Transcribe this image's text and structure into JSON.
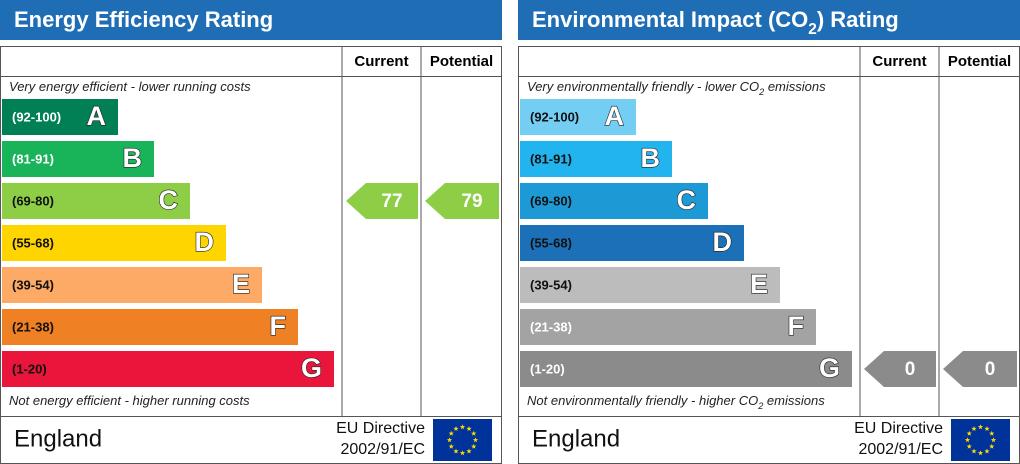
{
  "panels": [
    {
      "title": [
        "Energy Efficiency Rating"
      ],
      "headers": [
        "Current",
        "Potential"
      ],
      "top_note": [
        "Very energy efficient - lower running costs"
      ],
      "bands": [
        {
          "range": "(92-100)",
          "letter": "A",
          "color": "#008054",
          "label_color": "#ffffff"
        },
        {
          "range": "(81-91)",
          "letter": "B",
          "color": "#19b459",
          "label_color": "#ffffff"
        },
        {
          "range": "(69-80)",
          "letter": "C",
          "color": "#8dce46",
          "label_color": "#111111"
        },
        {
          "range": "(55-68)",
          "letter": "D",
          "color": "#ffd500",
          "label_color": "#111111"
        },
        {
          "range": "(39-54)",
          "letter": "E",
          "color": "#fcaa65",
          "label_color": "#111111"
        },
        {
          "range": "(21-38)",
          "letter": "F",
          "color": "#ef8023",
          "label_color": "#111111"
        },
        {
          "range": "(1-20)",
          "letter": "G",
          "color": "#e9153b",
          "label_color": "#111111"
        }
      ],
      "bottom_note": [
        "Not energy efficient - higher running costs"
      ],
      "current": 77,
      "potential": 79,
      "region": "England",
      "directive": [
        "EU Directive",
        "2002/91/EC"
      ]
    },
    {
      "title": [
        "Environmental Impact (CO",
        "2",
        ") Rating"
      ],
      "headers": [
        "Current",
        "Potential"
      ],
      "top_note": [
        "Very environmentally friendly - lower CO",
        "2",
        " emissions"
      ],
      "bands": [
        {
          "range": "(92-100)",
          "letter": "A",
          "color": "#74cdf3",
          "label_color": "#111111"
        },
        {
          "range": "(81-91)",
          "letter": "B",
          "color": "#22b4ee",
          "label_color": "#111111"
        },
        {
          "range": "(69-80)",
          "letter": "C",
          "color": "#1d9ad6",
          "label_color": "#111111"
        },
        {
          "range": "(55-68)",
          "letter": "D",
          "color": "#1b70b7",
          "label_color": "#111111"
        },
        {
          "range": "(39-54)",
          "letter": "E",
          "color": "#bcbcbc",
          "label_color": "#111111"
        },
        {
          "range": "(21-38)",
          "letter": "F",
          "color": "#a3a3a3",
          "label_color": "#ffffff"
        },
        {
          "range": "(1-20)",
          "letter": "G",
          "color": "#8b8b8b",
          "label_color": "#ffffff"
        }
      ],
      "bottom_note": [
        "Not environmentally friendly - higher CO",
        "2",
        " emissions"
      ],
      "current": 0,
      "potential": 0,
      "region": "England",
      "directive": [
        "EU Directive",
        "2002/91/EC"
      ]
    }
  ]
}
